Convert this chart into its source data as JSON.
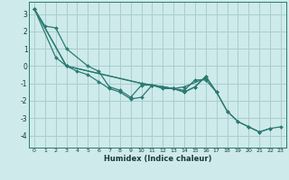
{
  "bg_color": "#ceeaea",
  "grid_color": "#a8cece",
  "line_color": "#2a7a72",
  "marker_color": "#2a7a72",
  "xlabel": "Humidex (Indice chaleur)",
  "xlim": [
    -0.5,
    23.5
  ],
  "ylim": [
    -4.7,
    3.7
  ],
  "yticks": [
    3,
    2,
    1,
    0,
    -1,
    -2,
    -3,
    -4
  ],
  "xticks": [
    0,
    1,
    2,
    3,
    4,
    5,
    6,
    7,
    8,
    9,
    10,
    11,
    12,
    13,
    14,
    15,
    16,
    17,
    18,
    19,
    20,
    21,
    22,
    23
  ],
  "lines_x": [
    [
      0,
      1,
      2,
      3,
      5,
      6,
      7,
      8,
      9,
      10,
      11,
      12,
      13,
      14,
      16
    ],
    [
      0,
      2,
      3,
      4,
      5,
      6,
      7,
      8,
      9,
      10,
      11,
      12,
      13,
      14,
      15,
      16,
      17
    ],
    [
      0,
      3,
      10,
      11,
      12,
      13,
      14,
      15,
      16,
      17,
      18,
      19,
      20,
      21,
      22
    ],
    [
      0,
      3,
      10,
      11,
      12,
      13,
      14,
      15,
      16,
      17,
      18,
      19,
      20,
      21,
      22,
      23
    ]
  ],
  "lines_y": [
    [
      3.3,
      2.3,
      2.2,
      1.0,
      0.0,
      -0.3,
      -1.2,
      -1.4,
      -1.8,
      -1.1,
      -1.1,
      -1.2,
      -1.3,
      -1.2,
      -0.7
    ],
    [
      3.3,
      0.5,
      0.0,
      -0.3,
      -0.5,
      -0.9,
      -1.3,
      -1.5,
      -1.9,
      -1.8,
      -1.1,
      -1.3,
      -1.3,
      -1.4,
      -0.8,
      -0.8,
      -1.5
    ],
    [
      3.3,
      0.0,
      -1.0,
      -1.1,
      -1.2,
      -1.3,
      -1.5,
      -1.2,
      -0.6,
      -1.5,
      -2.6,
      -3.2,
      -3.5,
      -3.8,
      -3.6
    ],
    [
      3.3,
      0.0,
      -1.0,
      -1.1,
      -1.2,
      -1.3,
      -1.5,
      -1.2,
      -0.6,
      -1.5,
      -2.6,
      -3.2,
      -3.5,
      -3.8,
      -3.6,
      -3.5
    ]
  ]
}
